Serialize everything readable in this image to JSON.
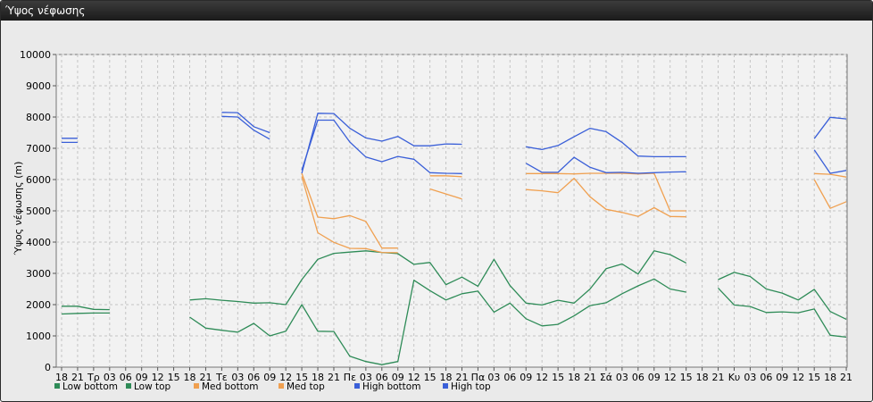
{
  "panel": {
    "title": "Ύψος νέφωσης"
  },
  "chart_data": {
    "type": "line",
    "ylabel": "Ύψος νέφωσης (m)",
    "xlabel": "",
    "ylim": [
      0,
      10000
    ],
    "yticks": [
      0,
      1000,
      2000,
      3000,
      4000,
      5000,
      6000,
      7000,
      8000,
      9000,
      10000
    ],
    "grid": true,
    "legend_position": "bottom-left",
    "categories": [
      "18",
      "21",
      "Τρ",
      "03",
      "06",
      "09",
      "12",
      "15",
      "18",
      "21",
      "Τε",
      "03",
      "06",
      "09",
      "12",
      "15",
      "18",
      "21",
      "Πε",
      "03",
      "06",
      "09",
      "12",
      "15",
      "18",
      "21",
      "Πα",
      "03",
      "06",
      "09",
      "12",
      "15",
      "18",
      "21",
      "Σά",
      "03",
      "06",
      "09",
      "12",
      "15",
      "18",
      "21",
      "Κυ",
      "03",
      "06",
      "09",
      "12",
      "15",
      "18",
      "21"
    ],
    "series": [
      {
        "name": "Low bottom",
        "color": "#2e8b57",
        "values": [
          1700,
          1720,
          1730,
          1730,
          null,
          null,
          null,
          null,
          1600,
          1250,
          1180,
          1120,
          1400,
          1000,
          1150,
          2000,
          1150,
          1140,
          350,
          180,
          80,
          180,
          2780,
          2450,
          2150,
          2350,
          2430,
          1760,
          2050,
          1550,
          1320,
          1370,
          1640,
          1970,
          2060,
          2350,
          2600,
          2820,
          2500,
          2400,
          null,
          2530,
          1990,
          1940,
          1750,
          1770,
          1740,
          1860,
          1020,
          960
        ]
      },
      {
        "name": "Low top",
        "color": "#2e8b57",
        "values": [
          1950,
          1950,
          1850,
          1840,
          null,
          null,
          null,
          null,
          2150,
          2190,
          2140,
          2100,
          2050,
          2060,
          2000,
          2800,
          3450,
          3640,
          3680,
          3720,
          3670,
          3630,
          3290,
          3350,
          2640,
          2880,
          2590,
          3450,
          2610,
          2050,
          1990,
          2140,
          2050,
          2500,
          3150,
          3300,
          2980,
          3720,
          3600,
          3330,
          null,
          2800,
          3030,
          2900,
          2500,
          2370,
          2150,
          2490,
          1780,
          1530
        ]
      },
      {
        "name": "Med bottom",
        "color": "#f0a050",
        "values": [
          null,
          null,
          null,
          null,
          null,
          null,
          null,
          null,
          null,
          null,
          null,
          null,
          null,
          null,
          null,
          6100,
          4300,
          3990,
          3800,
          3790,
          3670,
          3660,
          null,
          5700,
          5540,
          5380,
          null,
          null,
          null,
          5680,
          5640,
          5580,
          6040,
          5450,
          5050,
          4950,
          4820,
          5100,
          4820,
          4810,
          null,
          null,
          null,
          null,
          null,
          null,
          null,
          6000,
          5080,
          5290
        ]
      },
      {
        "name": "Med top",
        "color": "#f0a050",
        "values": [
          null,
          null,
          null,
          null,
          null,
          null,
          null,
          null,
          null,
          null,
          null,
          null,
          null,
          null,
          null,
          6200,
          4800,
          4750,
          4850,
          4660,
          3810,
          3810,
          null,
          6120,
          6120,
          6090,
          null,
          null,
          null,
          6190,
          6190,
          6190,
          6180,
          6200,
          6200,
          6200,
          6180,
          6200,
          5000,
          5000,
          null,
          null,
          null,
          null,
          null,
          null,
          null,
          6190,
          6170,
          6080
        ]
      },
      {
        "name": "High bottom",
        "color": "#3a5fd8",
        "values": [
          7190,
          7190,
          null,
          null,
          null,
          null,
          null,
          null,
          null,
          null,
          8020,
          8000,
          7580,
          7290,
          null,
          6300,
          7900,
          7900,
          7200,
          6720,
          6570,
          6740,
          6650,
          6220,
          6200,
          6190,
          null,
          null,
          null,
          6520,
          6230,
          6230,
          6710,
          6390,
          6220,
          6230,
          6200,
          6220,
          6240,
          6250,
          null,
          null,
          null,
          null,
          null,
          null,
          null,
          6950,
          6200,
          6290
        ]
      },
      {
        "name": "High top",
        "color": "#3a5fd8",
        "values": [
          7320,
          7320,
          null,
          null,
          null,
          null,
          null,
          null,
          null,
          null,
          8150,
          8140,
          7690,
          7500,
          null,
          6200,
          8120,
          8110,
          7640,
          7330,
          7230,
          7380,
          7080,
          7080,
          7140,
          7130,
          null,
          null,
          null,
          7050,
          6960,
          7090,
          7370,
          7640,
          7530,
          7190,
          6750,
          6730,
          6730,
          6730,
          null,
          null,
          null,
          null,
          null,
          null,
          null,
          7310,
          7990,
          7940
        ]
      }
    ]
  }
}
